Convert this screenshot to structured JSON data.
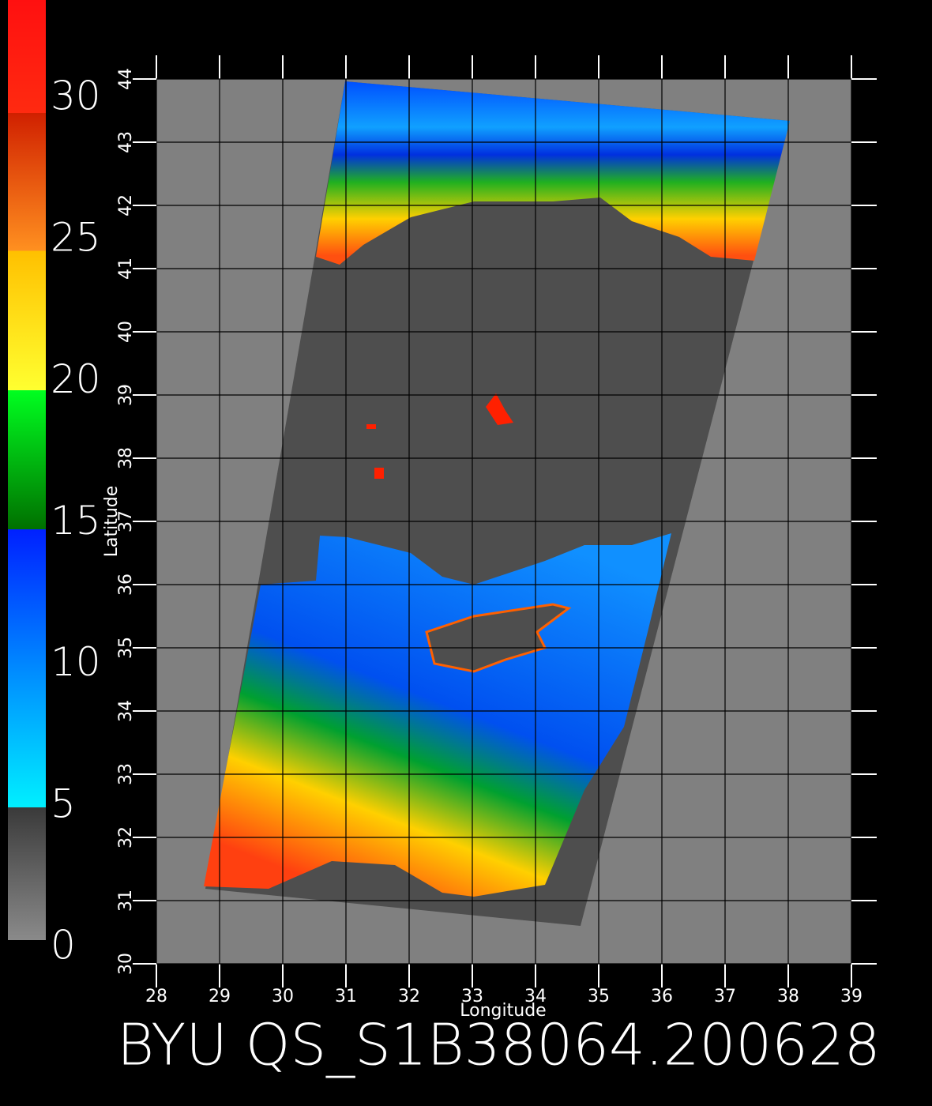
{
  "title": "BYU QS_S1B38064.200628",
  "x_axis": {
    "label": "Longitude",
    "ticks": [
      28,
      29,
      30,
      31,
      32,
      33,
      34,
      35,
      36,
      37,
      38,
      39
    ]
  },
  "y_axis": {
    "label": "Latitude",
    "ticks": [
      30,
      31,
      32,
      33,
      34,
      35,
      36,
      37,
      38,
      39,
      40,
      41,
      42,
      43,
      44
    ]
  },
  "colorbar": {
    "ticks": [
      0,
      5,
      10,
      15,
      20,
      25,
      30
    ]
  }
}
